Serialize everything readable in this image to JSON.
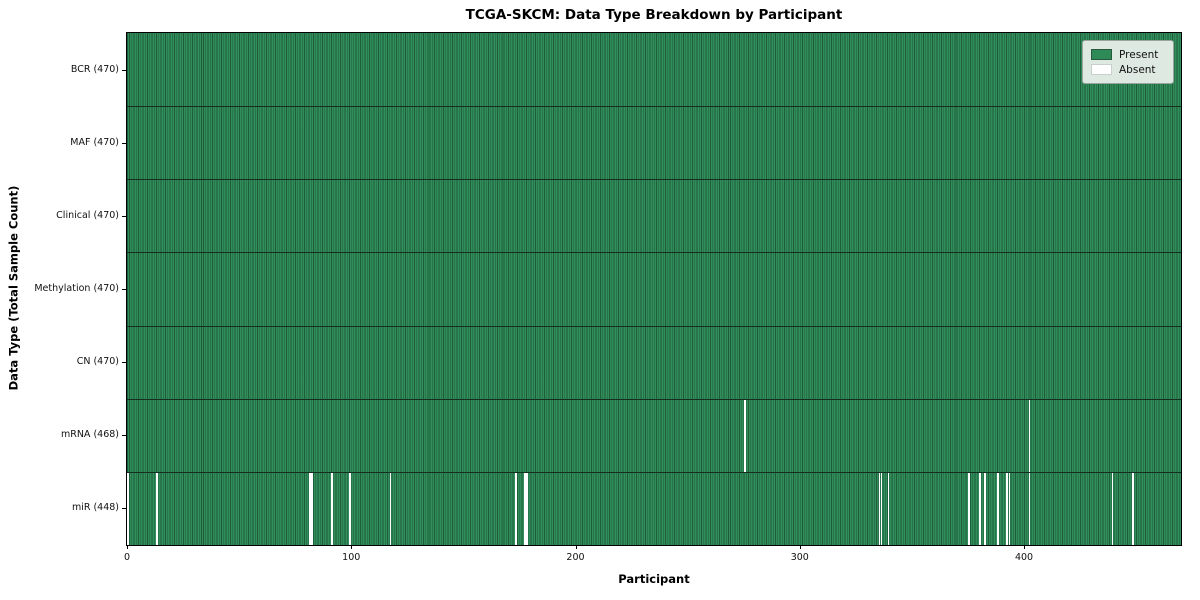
{
  "chart_data": {
    "type": "heatmap",
    "title": "TCGA-SKCM: Data Type Breakdown by Participant",
    "xlabel": "Participant",
    "ylabel": "Data Type (Total Sample Count)",
    "n_participants": 470,
    "x_ticks": [
      0,
      100,
      200,
      300,
      400
    ],
    "grid": "row-boundaries-only",
    "legend_position": "upper-right",
    "legend": [
      {
        "label": "Present",
        "color": "#2e8b57"
      },
      {
        "label": "Absent",
        "color": "#ffffff"
      }
    ],
    "rows": [
      {
        "label": "BCR (470)",
        "data_type": "BCR",
        "total": 470,
        "absent": []
      },
      {
        "label": "MAF (470)",
        "data_type": "MAF",
        "total": 470,
        "absent": []
      },
      {
        "label": "Clinical (470)",
        "data_type": "Clinical",
        "total": 470,
        "absent": []
      },
      {
        "label": "Methylation (470)",
        "data_type": "Methylation",
        "total": 470,
        "absent": []
      },
      {
        "label": "CN (470)",
        "data_type": "CN",
        "total": 470,
        "absent": []
      },
      {
        "label": "mRNA (468)",
        "data_type": "mRNA",
        "total": 468,
        "absent": [
          275,
          402
        ]
      },
      {
        "label": "miR (448)",
        "data_type": "miR",
        "total": 448,
        "absent": [
          0,
          13,
          81,
          82,
          91,
          99,
          117,
          173,
          177,
          178,
          335,
          336,
          339,
          375,
          380,
          382,
          388,
          392,
          393,
          402,
          439,
          448
        ]
      }
    ]
  }
}
